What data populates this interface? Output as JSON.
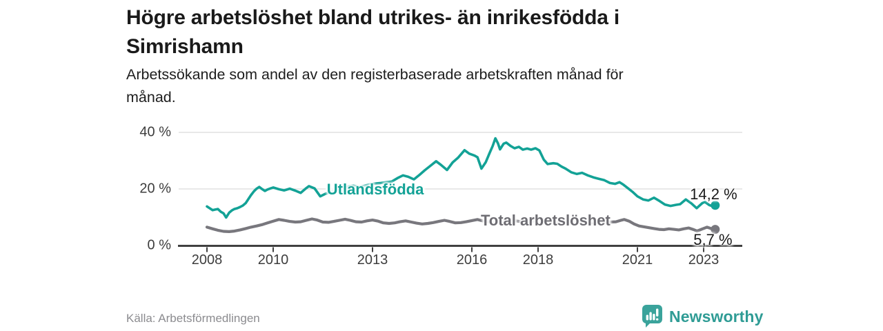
{
  "header": {
    "title": "Högre arbetslöshet bland utrikes- än inrikesfödda i\nSimrishamn",
    "subtitle": "Arbetssökande som andel av den registerbaserade arbetskraften månad för\nmånad."
  },
  "footer": {
    "source": "Källa: Arbetsförmedlingen",
    "brand": "Newsworthy",
    "brand_color": "#2f9c95",
    "logo_icon": "bar-chart-speech-bubble-icon"
  },
  "colors": {
    "foreign_born_line": "#13a296",
    "total_line": "#78777d",
    "total_label": "#6e6d73",
    "value_label": "#1a1a1a",
    "axis_text": "#3d3d3d",
    "axis_line": "#404040",
    "gridline": "#d9d9d9"
  },
  "chart_data": {
    "type": "line",
    "title": "Högre arbetslöshet bland utrikes- än inrikesfödda i Simrishamn",
    "xlabel": "",
    "ylabel": "Arbetssökande som andel av den registerbaserade arbetskraften (%)",
    "grid": "horizontal-only",
    "legend": "inline-labels",
    "x_axis": {
      "tick_values": [
        2008,
        2010,
        2013,
        2016,
        2018,
        2021,
        2023
      ],
      "tick_labels": [
        "2008",
        "2010",
        "2013",
        "2016",
        "2018",
        "2021",
        "2023"
      ],
      "range": [
        2007.1,
        2024.2
      ]
    },
    "y_axis": {
      "tick_values": [
        0,
        20,
        40
      ],
      "tick_labels": [
        "0 %",
        "20 %",
        "40 %"
      ],
      "grid_values": [
        20,
        40
      ],
      "range": [
        0,
        43
      ]
    },
    "series": [
      {
        "id": "utlandsfodda",
        "name": "Utlandsfödda",
        "color": "#13a296",
        "stroke_width": 3.6,
        "end_value": 14.2,
        "end_label": "14,2 %",
        "points": [
          [
            2008.0,
            13.8
          ],
          [
            2008.08,
            13.2
          ],
          [
            2008.17,
            12.5
          ],
          [
            2008.25,
            12.7
          ],
          [
            2008.33,
            12.9
          ],
          [
            2008.42,
            11.9
          ],
          [
            2008.5,
            11.4
          ],
          [
            2008.58,
            9.9
          ],
          [
            2008.67,
            11.6
          ],
          [
            2008.75,
            12.4
          ],
          [
            2008.83,
            12.9
          ],
          [
            2008.92,
            13.2
          ],
          [
            2009.0,
            13.6
          ],
          [
            2009.08,
            14.1
          ],
          [
            2009.17,
            15.0
          ],
          [
            2009.25,
            16.4
          ],
          [
            2009.33,
            17.8
          ],
          [
            2009.42,
            19.2
          ],
          [
            2009.5,
            20.1
          ],
          [
            2009.58,
            20.7
          ],
          [
            2009.67,
            19.9
          ],
          [
            2009.75,
            19.3
          ],
          [
            2009.83,
            19.8
          ],
          [
            2009.92,
            20.2
          ],
          [
            2010.0,
            20.5
          ],
          [
            2010.17,
            19.9
          ],
          [
            2010.33,
            19.5
          ],
          [
            2010.5,
            20.1
          ],
          [
            2010.67,
            19.4
          ],
          [
            2010.83,
            18.6
          ],
          [
            2011.0,
            20.3
          ],
          [
            2011.08,
            21.0
          ],
          [
            2011.25,
            20.2
          ],
          [
            2011.42,
            17.4
          ],
          [
            2011.58,
            18.3
          ],
          [
            2011.75,
            19.0
          ],
          [
            2011.92,
            19.6
          ],
          [
            2012.08,
            20.3
          ],
          [
            2012.25,
            20.8
          ],
          [
            2012.42,
            21.2
          ],
          [
            2012.58,
            20.7
          ],
          [
            2012.75,
            21.1
          ],
          [
            2012.92,
            21.6
          ],
          [
            2013.08,
            21.9
          ],
          [
            2013.25,
            22.1
          ],
          [
            2013.42,
            22.4
          ],
          [
            2013.58,
            22.6
          ],
          [
            2013.75,
            23.8
          ],
          [
            2013.92,
            24.8
          ],
          [
            2014.08,
            24.3
          ],
          [
            2014.25,
            23.4
          ],
          [
            2014.42,
            25.0
          ],
          [
            2014.58,
            26.6
          ],
          [
            2014.75,
            28.2
          ],
          [
            2014.92,
            29.8
          ],
          [
            2015.08,
            28.4
          ],
          [
            2015.25,
            26.7
          ],
          [
            2015.42,
            29.4
          ],
          [
            2015.58,
            31.0
          ],
          [
            2015.78,
            33.7
          ],
          [
            2015.92,
            32.5
          ],
          [
            2016.08,
            31.8
          ],
          [
            2016.17,
            31.2
          ],
          [
            2016.29,
            27.2
          ],
          [
            2016.42,
            29.5
          ],
          [
            2016.54,
            32.8
          ],
          [
            2016.63,
            35.2
          ],
          [
            2016.71,
            37.9
          ],
          [
            2016.79,
            36.1
          ],
          [
            2016.85,
            34.0
          ],
          [
            2016.96,
            36.0
          ],
          [
            2017.04,
            36.4
          ],
          [
            2017.17,
            35.2
          ],
          [
            2017.29,
            34.4
          ],
          [
            2017.42,
            34.9
          ],
          [
            2017.54,
            33.9
          ],
          [
            2017.67,
            34.3
          ],
          [
            2017.79,
            33.9
          ],
          [
            2017.92,
            34.4
          ],
          [
            2018.04,
            33.6
          ],
          [
            2018.17,
            30.4
          ],
          [
            2018.29,
            28.8
          ],
          [
            2018.46,
            29.1
          ],
          [
            2018.58,
            28.9
          ],
          [
            2018.71,
            27.9
          ],
          [
            2018.83,
            27.2
          ],
          [
            2019.0,
            25.9
          ],
          [
            2019.17,
            25.3
          ],
          [
            2019.33,
            25.7
          ],
          [
            2019.5,
            24.8
          ],
          [
            2019.67,
            24.1
          ],
          [
            2019.83,
            23.6
          ],
          [
            2020.0,
            23.1
          ],
          [
            2020.17,
            22.1
          ],
          [
            2020.33,
            21.8
          ],
          [
            2020.46,
            22.4
          ],
          [
            2020.58,
            21.5
          ],
          [
            2020.71,
            20.3
          ],
          [
            2020.85,
            19.0
          ],
          [
            2021.0,
            17.4
          ],
          [
            2021.17,
            16.3
          ],
          [
            2021.33,
            15.9
          ],
          [
            2021.5,
            16.9
          ],
          [
            2021.67,
            15.7
          ],
          [
            2021.83,
            14.5
          ],
          [
            2022.0,
            14.0
          ],
          [
            2022.17,
            14.4
          ],
          [
            2022.29,
            14.6
          ],
          [
            2022.46,
            16.3
          ],
          [
            2022.63,
            14.9
          ],
          [
            2022.79,
            13.2
          ],
          [
            2022.96,
            15.0
          ],
          [
            2023.04,
            15.4
          ],
          [
            2023.17,
            14.3
          ],
          [
            2023.27,
            13.9
          ],
          [
            2023.35,
            14.2
          ]
        ]
      },
      {
        "id": "total",
        "name": "Total arbetslöshet",
        "color": "#78777d",
        "stroke_width": 4.2,
        "end_value": 5.7,
        "end_label": "5,7 %",
        "points": [
          [
            2008.0,
            6.5
          ],
          [
            2008.17,
            5.9
          ],
          [
            2008.33,
            5.4
          ],
          [
            2008.5,
            5.0
          ],
          [
            2008.67,
            4.9
          ],
          [
            2008.83,
            5.1
          ],
          [
            2009.0,
            5.5
          ],
          [
            2009.17,
            6.0
          ],
          [
            2009.33,
            6.5
          ],
          [
            2009.5,
            6.9
          ],
          [
            2009.67,
            7.4
          ],
          [
            2009.83,
            8.0
          ],
          [
            2010.0,
            8.6
          ],
          [
            2010.17,
            9.2
          ],
          [
            2010.33,
            8.9
          ],
          [
            2010.5,
            8.5
          ],
          [
            2010.67,
            8.3
          ],
          [
            2010.83,
            8.4
          ],
          [
            2011.0,
            8.9
          ],
          [
            2011.17,
            9.4
          ],
          [
            2011.33,
            9.0
          ],
          [
            2011.5,
            8.3
          ],
          [
            2011.67,
            8.2
          ],
          [
            2011.83,
            8.5
          ],
          [
            2012.0,
            8.9
          ],
          [
            2012.17,
            9.3
          ],
          [
            2012.33,
            8.9
          ],
          [
            2012.5,
            8.4
          ],
          [
            2012.67,
            8.3
          ],
          [
            2012.83,
            8.7
          ],
          [
            2013.0,
            9.0
          ],
          [
            2013.17,
            8.6
          ],
          [
            2013.33,
            8.0
          ],
          [
            2013.5,
            7.8
          ],
          [
            2013.67,
            8.0
          ],
          [
            2013.83,
            8.4
          ],
          [
            2014.0,
            8.7
          ],
          [
            2014.17,
            8.3
          ],
          [
            2014.33,
            7.9
          ],
          [
            2014.5,
            7.6
          ],
          [
            2014.67,
            7.8
          ],
          [
            2014.83,
            8.1
          ],
          [
            2015.0,
            8.5
          ],
          [
            2015.17,
            8.9
          ],
          [
            2015.33,
            8.5
          ],
          [
            2015.5,
            8.0
          ],
          [
            2015.67,
            8.1
          ],
          [
            2015.83,
            8.4
          ],
          [
            2016.0,
            8.8
          ],
          [
            2016.17,
            9.2
          ],
          [
            2016.33,
            8.7
          ],
          [
            2016.5,
            8.4
          ],
          [
            2016.67,
            8.2
          ],
          [
            2016.83,
            8.5
          ],
          [
            2017.0,
            8.8
          ],
          [
            2017.17,
            9.1
          ],
          [
            2017.33,
            8.7
          ],
          [
            2017.5,
            8.4
          ],
          [
            2017.67,
            8.3
          ],
          [
            2017.83,
            8.6
          ],
          [
            2018.0,
            8.9
          ],
          [
            2018.17,
            9.1
          ],
          [
            2018.33,
            8.7
          ],
          [
            2018.5,
            8.4
          ],
          [
            2018.67,
            8.2
          ],
          [
            2018.83,
            8.4
          ],
          [
            2019.0,
            8.6
          ],
          [
            2019.17,
            8.8
          ],
          [
            2019.33,
            8.4
          ],
          [
            2019.5,
            8.1
          ],
          [
            2019.67,
            8.0
          ],
          [
            2019.83,
            8.2
          ],
          [
            2020.0,
            8.4
          ],
          [
            2020.17,
            8.3
          ],
          [
            2020.35,
            8.4
          ],
          [
            2020.5,
            8.9
          ],
          [
            2020.6,
            9.2
          ],
          [
            2020.75,
            8.6
          ],
          [
            2020.9,
            7.6
          ],
          [
            2021.05,
            6.9
          ],
          [
            2021.2,
            6.6
          ],
          [
            2021.35,
            6.3
          ],
          [
            2021.5,
            6.0
          ],
          [
            2021.65,
            5.7
          ],
          [
            2021.8,
            5.6
          ],
          [
            2021.95,
            5.9
          ],
          [
            2022.1,
            5.7
          ],
          [
            2022.25,
            5.5
          ],
          [
            2022.4,
            5.9
          ],
          [
            2022.55,
            6.2
          ],
          [
            2022.7,
            5.6
          ],
          [
            2022.8,
            5.1
          ],
          [
            2022.95,
            5.8
          ],
          [
            2023.1,
            6.5
          ],
          [
            2023.2,
            6.1
          ],
          [
            2023.27,
            5.8
          ],
          [
            2023.35,
            5.7
          ]
        ]
      }
    ],
    "annotations": [
      {
        "id": "series-label-utlandsfodda",
        "text": "Utlandsfödda",
        "color": "#13a296",
        "weight": 700,
        "x": 2011.62,
        "y": 19.7,
        "align": "left"
      },
      {
        "id": "series-label-total-arbetsloshet",
        "text": "Total arbetslöshet",
        "color": "#6e6d73",
        "weight": 700,
        "x": 2016.27,
        "y": 8.7,
        "align": "left"
      },
      {
        "id": "value-label-utlandsfodda",
        "text": "14,2 %",
        "color": "#1a1a1a",
        "weight": 400,
        "x": 2023.3,
        "y": 18.1,
        "align": "center"
      },
      {
        "id": "value-label-total",
        "text": "5,7 %",
        "color": "#1a1a1a",
        "weight": 400,
        "x": 2023.28,
        "y": 2.0,
        "align": "center"
      }
    ]
  }
}
